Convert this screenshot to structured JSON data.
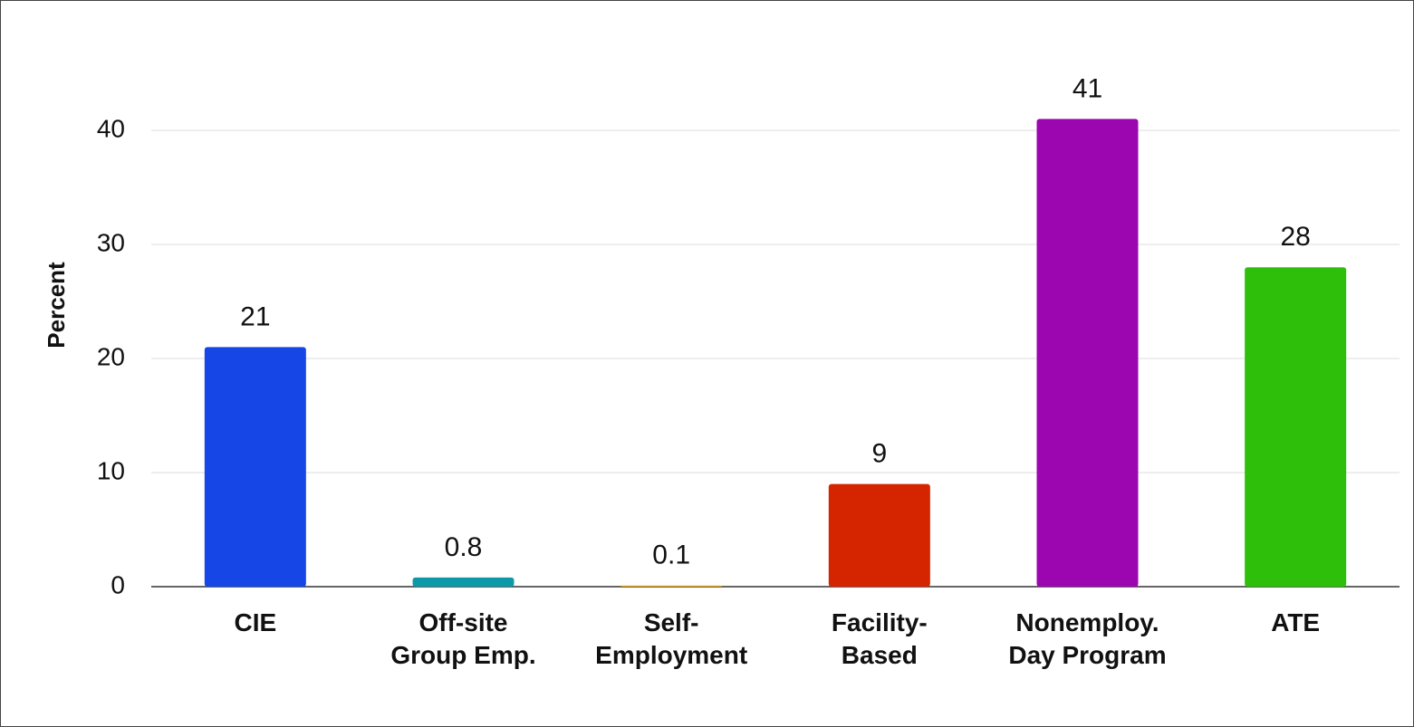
{
  "chart_data": {
    "type": "bar",
    "y_label": "Percent",
    "categories": [
      "CIE",
      "Off-site\nGroup Emp.",
      "Self-\nEmployment",
      "Facility-\nBased",
      "Nonemploy.\nDay Program",
      "ATE"
    ],
    "values": [
      21,
      0.8,
      0.1,
      9,
      41,
      28
    ],
    "colors": [
      "#1746e6",
      "#0e99a8",
      "#f0a30a",
      "#d42400",
      "#9c06b0",
      "#2ebf0a"
    ],
    "ylim": [
      0,
      45
    ],
    "yticks": [
      0,
      10,
      20,
      30,
      40
    ],
    "grid": true
  }
}
